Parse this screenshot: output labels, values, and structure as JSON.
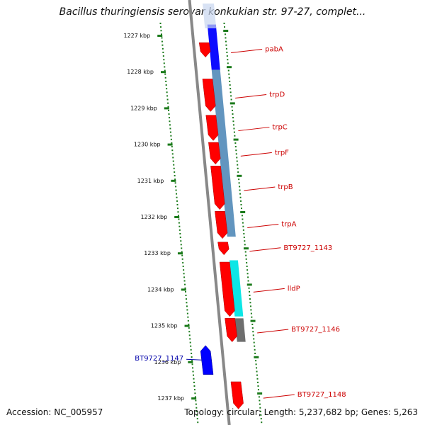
{
  "title": "Bacillus thuringiensis serovar konkukian str. 97-27, complet...",
  "footer": {
    "accession": "Accession: NC_005957",
    "summary": "Topology: circular; Length: 5,237,682 bp; Genes: 5,263"
  },
  "colors": {
    "backbone": "#888888",
    "ticks": "#1a7a1a",
    "forward_cds": "#ff0000",
    "reverse_cds": "#0000ff",
    "operon": "#4682b4",
    "lldP_band": "#00e5e5",
    "gray_band": "#666666",
    "label_red": "#cc0000",
    "label_blue": "#0000aa"
  },
  "scale": {
    "unit": "kbp",
    "ticks": [
      {
        "label": "1227 kbp",
        "kbp": 1227
      },
      {
        "label": "1228 kbp",
        "kbp": 1228
      },
      {
        "label": "1229 kbp",
        "kbp": 1229
      },
      {
        "label": "1230 kbp",
        "kbp": 1230
      },
      {
        "label": "1231 kbp",
        "kbp": 1231
      },
      {
        "label": "1232 kbp",
        "kbp": 1232
      },
      {
        "label": "1233 kbp",
        "kbp": 1233
      },
      {
        "label": "1234 kbp",
        "kbp": 1234
      },
      {
        "label": "1235 kbp",
        "kbp": 1235
      },
      {
        "label": "1236 kbp",
        "kbp": 1236
      },
      {
        "label": "1237 kbp",
        "kbp": 1237
      }
    ]
  },
  "features": [
    {
      "label": "pabA",
      "strand": "forward",
      "start": 1227.2,
      "end": 1227.6
    },
    {
      "label": "trpD",
      "strand": "forward",
      "start": 1228.2,
      "end": 1229.1
    },
    {
      "label": "trpC",
      "strand": "forward",
      "start": 1229.2,
      "end": 1229.9
    },
    {
      "label": "trpF",
      "strand": "forward",
      "start": 1229.95,
      "end": 1230.55
    },
    {
      "label": "trpB",
      "strand": "forward",
      "start": 1230.6,
      "end": 1231.8
    },
    {
      "label": "trpA",
      "strand": "forward",
      "start": 1231.85,
      "end": 1232.6
    },
    {
      "label": "BT9727_1143",
      "strand": "forward",
      "start": 1232.7,
      "end": 1233.05
    },
    {
      "label": "lldP",
      "strand": "forward",
      "start": 1233.25,
      "end": 1234.75
    },
    {
      "label": "BT9727_1146",
      "strand": "forward",
      "start": 1234.8,
      "end": 1235.45
    },
    {
      "label": "BT9727_1147",
      "strand": "reverse",
      "start": 1235.55,
      "end": 1236.35
    },
    {
      "label": "BT9727_1148",
      "strand": "forward",
      "start": 1236.55,
      "end": 1237.3
    }
  ],
  "bands": [
    {
      "kind": "blue",
      "start": 1226.7,
      "end": 1227.95
    },
    {
      "kind": "operon",
      "start": 1227.95,
      "end": 1232.55
    },
    {
      "kind": "cyan",
      "start": 1233.2,
      "end": 1234.75
    },
    {
      "kind": "gray",
      "start": 1234.8,
      "end": 1235.45
    }
  ]
}
